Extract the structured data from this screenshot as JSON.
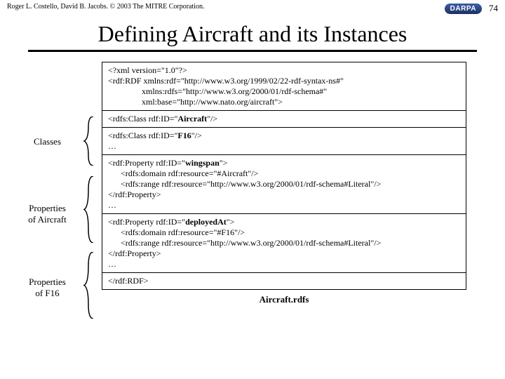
{
  "header": {
    "copyright": "Roger L. Costello, David B. Jacobs. © 2003 The MITRE Corporation.",
    "logo_text": "DARPA",
    "page_number": "74"
  },
  "title": "Defining Aircraft and its Instances",
  "caption": "Aircraft.rdfs",
  "labels": {
    "classes": "Classes",
    "props_aircraft": "Properties\nof Aircraft",
    "props_f16": "Properties\nof F16"
  },
  "code": {
    "block1_l1": "<?xml version=\"1.0\"?>",
    "block1_l2": "<rdf:RDF xmlns:rdf=\"http://www.w3.org/1999/02/22-rdf-syntax-ns#\"",
    "block1_l3": "                xmlns:rdfs=\"http://www.w3.org/2000/01/rdf-schema#\"",
    "block1_l4": "                xml:base=\"http://www.nato.org/aircraft\">",
    "block2_pre": "<rdfs:Class rdf:ID=\"",
    "block2_bold": "Aircraft",
    "block2_post": "\"/>",
    "block3_pre": "<rdfs:Class rdf:ID=\"",
    "block3_bold": "F16",
    "block3_post": "\"/>",
    "block4_l1_pre": "<rdf:Property rdf:ID=\"",
    "block4_l1_bold": "wingspan",
    "block4_l1_post": "\">",
    "block4_l2": "      <rdfs:domain rdf:resource=\"#Aircraft\"/>",
    "block4_l3": "      <rdfs:range rdf:resource=\"http://www.w3.org/2000/01/rdf-schema#Literal\"/>",
    "block4_l4": "</rdf:Property>",
    "block5_l1_pre": "<rdf:Property rdf:ID=\"",
    "block5_l1_bold": "deployedAt",
    "block5_l1_post": "\">",
    "block5_l2": "      <rdfs:domain rdf:resource=\"#F16\"/>",
    "block5_l3": "      <rdfs:range rdf:resource=\"http://www.w3.org/2000/01/rdf-schema#Literal\"/>",
    "block5_l4": "</rdf:Property>",
    "block6": "</rdf:RDF>",
    "ellipsis": "…"
  }
}
